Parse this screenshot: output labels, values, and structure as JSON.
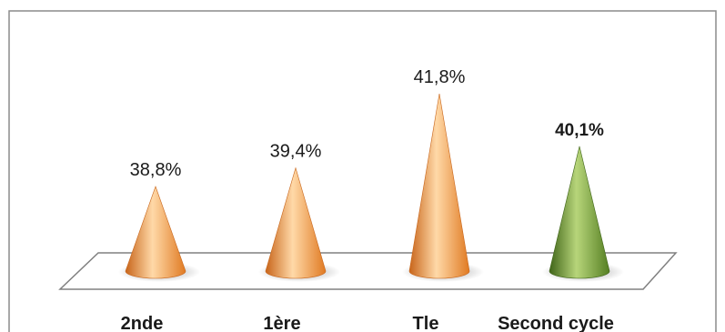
{
  "chart_data": {
    "type": "bar",
    "bar_shape": "3d-cone",
    "categories": [
      "2nde",
      "1ère",
      "Tle",
      "Second cycle"
    ],
    "values": [
      38.8,
      39.4,
      41.8,
      40.1
    ],
    "value_labels": [
      "38,8%",
      "39,4%",
      "41,8%",
      "40,1%"
    ],
    "unit": "%",
    "colors": {
      "default": "#F39A3C",
      "default_light": "#FFD9A8",
      "default_dark": "#C8651A",
      "highlight": "#6E9A2F",
      "highlight_light": "#B7D57A",
      "highlight_dark": "#3F6418",
      "floor_stroke": "#808080",
      "frame": "#8C8C8C"
    },
    "highlight_index": 3,
    "grid": false,
    "legend": "none"
  }
}
